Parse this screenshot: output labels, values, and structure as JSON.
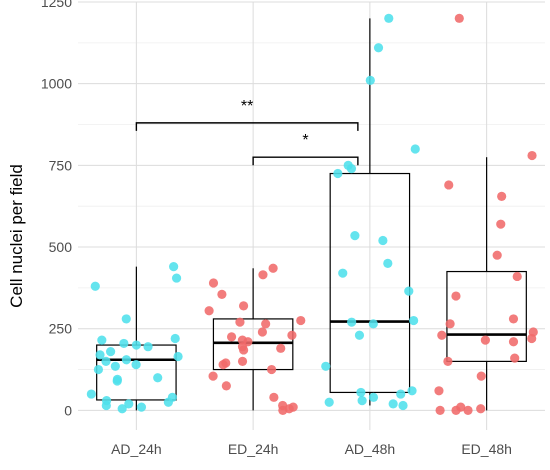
{
  "chart_data": {
    "type": "box",
    "ylabel": "Cell nuclei per field",
    "xlabel": "",
    "ylim": [
      -60,
      1250
    ],
    "yticks": [
      0,
      250,
      500,
      750,
      1000,
      1250
    ],
    "categories": [
      "AD_24h",
      "ED_24h",
      "AD_48h",
      "ED_48h"
    ],
    "colors": {
      "AD": "#4fe0ec",
      "ED": "#f06a6a"
    },
    "boxes": [
      {
        "category": "AD_24h",
        "group": "AD",
        "q1": 32,
        "median": 155,
        "q3": 200,
        "whisker_low": 0,
        "whisker_high": 440
      },
      {
        "category": "ED_24h",
        "group": "ED",
        "q1": 125,
        "median": 207,
        "q3": 280,
        "whisker_low": 0,
        "whisker_high": 435
      },
      {
        "category": "AD_48h",
        "group": "AD",
        "q1": 55,
        "median": 272,
        "q3": 725,
        "whisker_low": 15,
        "whisker_high": 1200
      },
      {
        "category": "ED_48h",
        "group": "ED",
        "q1": 150,
        "median": 232,
        "q3": 425,
        "whisker_low": 0,
        "whisker_high": 775
      }
    ],
    "points": [
      {
        "category": "AD_24h",
        "values": [
          440,
          405,
          380,
          280,
          220,
          215,
          205,
          200,
          195,
          180,
          170,
          165,
          155,
          150,
          140,
          135,
          125,
          100,
          95,
          90,
          50,
          40,
          30,
          25,
          20,
          15,
          10,
          5
        ]
      },
      {
        "category": "ED_24h",
        "values": [
          435,
          415,
          390,
          355,
          320,
          305,
          275,
          270,
          265,
          240,
          230,
          225,
          215,
          210,
          195,
          190,
          185,
          150,
          145,
          140,
          125,
          105,
          75,
          40,
          15,
          10,
          5,
          0
        ]
      },
      {
        "category": "AD_48h",
        "values": [
          1200,
          1110,
          1010,
          800,
          750,
          740,
          725,
          535,
          520,
          450,
          420,
          365,
          275,
          270,
          265,
          230,
          135,
          60,
          55,
          50,
          40,
          30,
          25,
          20,
          15
        ]
      },
      {
        "category": "ED_48h",
        "values": [
          1200,
          780,
          690,
          655,
          570,
          475,
          410,
          350,
          280,
          265,
          240,
          230,
          220,
          215,
          210,
          160,
          150,
          105,
          60,
          10,
          5,
          0,
          0,
          0
        ]
      }
    ],
    "annotations": [
      {
        "from": "AD_24h",
        "to": "AD_48h",
        "y": 880,
        "label": "**"
      },
      {
        "from": "ED_24h",
        "to": "AD_48h",
        "y": 775,
        "label": "*"
      }
    ]
  }
}
